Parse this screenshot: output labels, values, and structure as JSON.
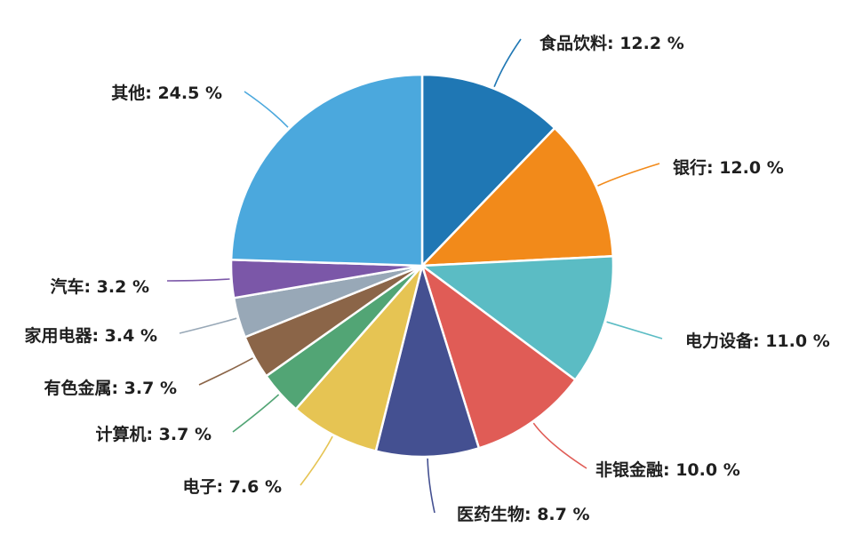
{
  "chart_data": {
    "type": "pie",
    "start_angle_deg": 0,
    "direction": "clockwise",
    "slices": [
      {
        "label": "食品饮料",
        "value": 12.2,
        "display": "食品饮料: 12.2 %",
        "color": "#1f77b4"
      },
      {
        "label": "银行",
        "value": 12.0,
        "display": "银行: 12.0 %",
        "color": "#f28a1a"
      },
      {
        "label": "电力设备",
        "value": 11.0,
        "display": "电力设备: 11.0 %",
        "color": "#5bbcc4"
      },
      {
        "label": "非银金融",
        "value": 10.0,
        "display": "非银金融: 10.0 %",
        "color": "#e05c56"
      },
      {
        "label": "医药生物",
        "value": 8.7,
        "display": "医药生物: 8.7 %",
        "color": "#445091"
      },
      {
        "label": "电子",
        "value": 7.6,
        "display": "电子: 7.6 %",
        "color": "#e6c453"
      },
      {
        "label": "计算机",
        "value": 3.7,
        "display": "计算机: 3.7 %",
        "color": "#52a575"
      },
      {
        "label": "有色金属",
        "value": 3.7,
        "display": "有色金属: 3.7 %",
        "color": "#8b6548"
      },
      {
        "label": "家用电器",
        "value": 3.4,
        "display": "家用电器: 3.4 %",
        "color": "#98a8b7"
      },
      {
        "label": "汽车",
        "value": 3.2,
        "display": "汽车: 3.2 %",
        "color": "#7b57a8"
      },
      {
        "label": "其他",
        "value": 24.5,
        "display": "其他: 24.5 %",
        "color": "#4ba8dd"
      }
    ]
  }
}
